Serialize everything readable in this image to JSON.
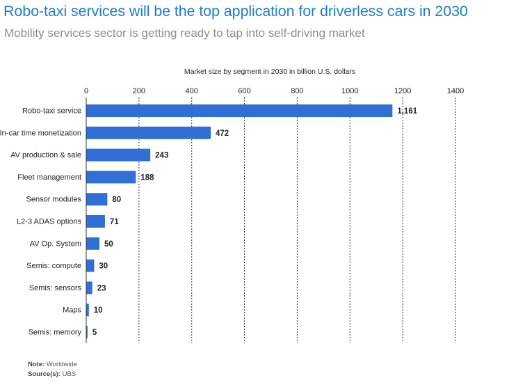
{
  "header": {
    "title": "Robo-taxi services will be the top application for driverless cars in 2030",
    "subtitle": "Mobility services sector is getting ready to tap into self-driving market"
  },
  "footer": {
    "note_label": "Note:",
    "note_value": "Worldwide",
    "source_label": "Source(s):",
    "source_value": "UBS"
  },
  "chart_data": {
    "type": "bar",
    "orientation": "horizontal",
    "title": "Market size by segment in 2030 in billion U.S. dollars",
    "categories": [
      "Robo-taxi service",
      "In-car time monetization",
      "AV production & sale",
      "Fleet management",
      "Sensor modules",
      "L2-3 ADAS options",
      "AV Op. System",
      "Semis: compute",
      "Semis: sensors",
      "Maps",
      "Semis: memory"
    ],
    "values": [
      1161,
      472,
      243,
      188,
      80,
      71,
      50,
      30,
      23,
      10,
      5
    ],
    "value_labels": [
      "1,161",
      "472",
      "243",
      "188",
      "80",
      "71",
      "50",
      "30",
      "23",
      "10",
      "5"
    ],
    "xlim": [
      0,
      1400
    ],
    "xticks": [
      0,
      200,
      400,
      600,
      800,
      1000,
      1200,
      1400
    ],
    "tick_labels": [
      "0",
      "200",
      "400",
      "600",
      "800",
      "1000",
      "1200",
      "1400"
    ],
    "axis_position": "top",
    "grid": true,
    "bar_color": "#2f6fd6"
  }
}
